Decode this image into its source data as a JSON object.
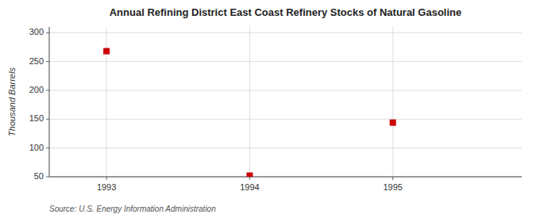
{
  "chart_data": {
    "type": "scatter",
    "title": "Annual Refining District East Coast Refinery Stocks of Natural Gasoline",
    "ylabel": "Thousand Barrels",
    "source": "Source: U.S. Energy Information Administration",
    "x": [
      1993,
      1994,
      1995
    ],
    "values": [
      268,
      52,
      144
    ],
    "xlim": [
      1992.6,
      1995.9
    ],
    "ylim": [
      50,
      310
    ],
    "xticks": [
      1993,
      1994,
      1995
    ],
    "yticks": [
      50,
      100,
      150,
      200,
      250,
      300
    ],
    "color": "#cc0000",
    "marker": "square",
    "grid": true
  }
}
